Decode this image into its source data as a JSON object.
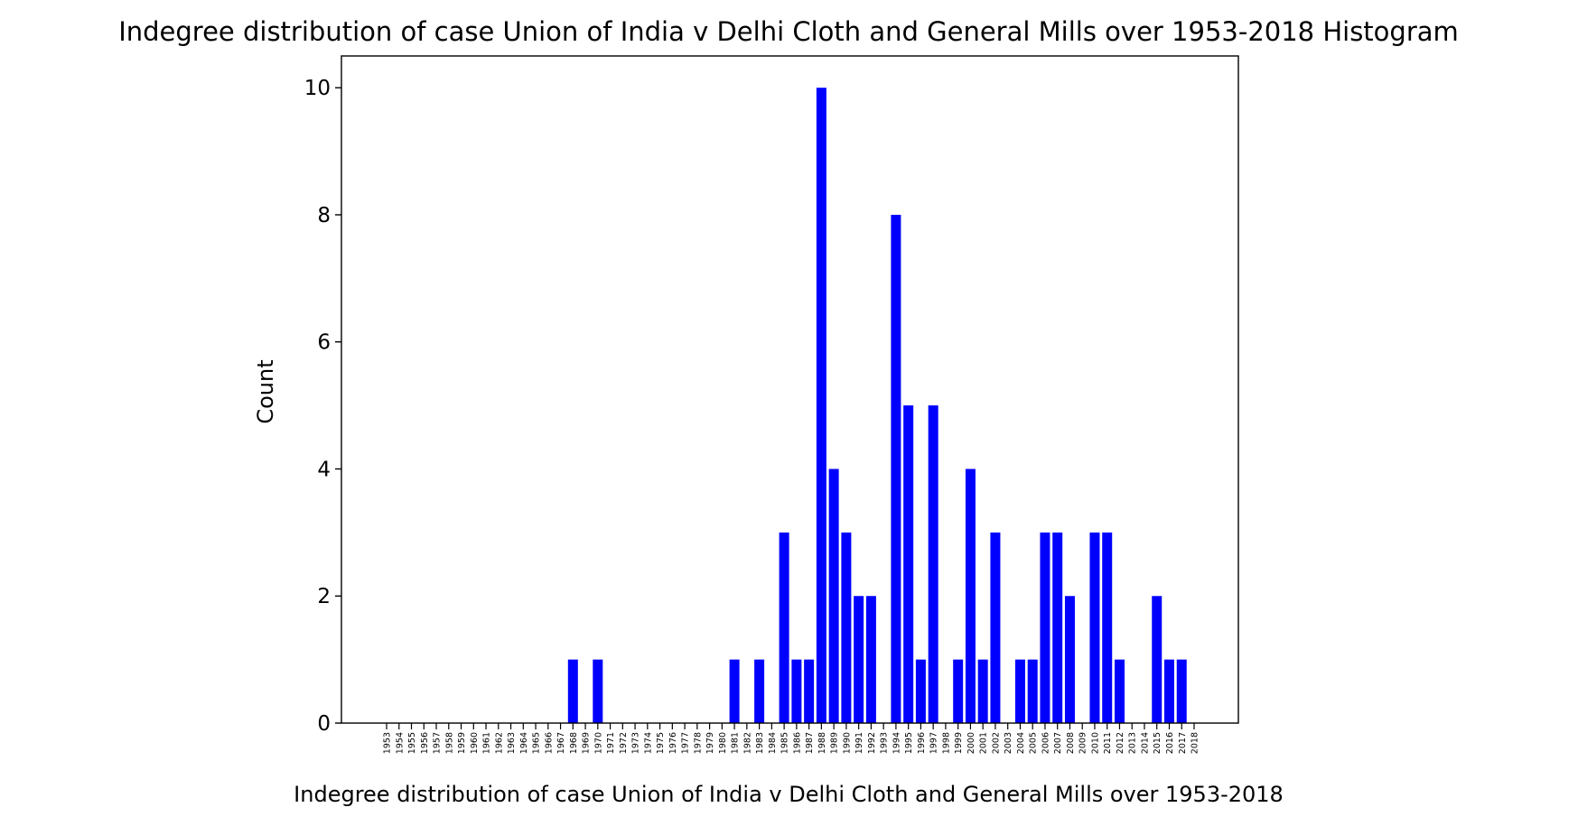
{
  "chart_data": {
    "type": "bar",
    "title": "Indegree distribution of case Union of India v Delhi Cloth and General Mills over 1953-2018 Histogram",
    "xlabel": "Indegree distribution of case Union of India v Delhi Cloth and General Mills over 1953-2018",
    "ylabel": "Count",
    "ylim": [
      0,
      10.5
    ],
    "yticks": [
      0,
      2,
      4,
      6,
      8,
      10
    ],
    "grid": false,
    "bar_color": "#0000ff",
    "categories": [
      "1953",
      "1954",
      "1955",
      "1956",
      "1957",
      "1958",
      "1959",
      "1960",
      "1961",
      "1962",
      "1963",
      "1964",
      "1965",
      "1966",
      "1967",
      "1968",
      "1969",
      "1970",
      "1971",
      "1972",
      "1973",
      "1974",
      "1975",
      "1976",
      "1977",
      "1978",
      "1979",
      "1980",
      "1981",
      "1982",
      "1983",
      "1984",
      "1985",
      "1986",
      "1987",
      "1988",
      "1989",
      "1990",
      "1991",
      "1992",
      "1993",
      "1994",
      "1995",
      "1996",
      "1997",
      "1998",
      "1999",
      "2000",
      "2001",
      "2002",
      "2003",
      "2004",
      "2005",
      "2006",
      "2007",
      "2008",
      "2009",
      "2010",
      "2011",
      "2012",
      "2013",
      "2014",
      "2015",
      "2016",
      "2017",
      "2018"
    ],
    "values": [
      0,
      0,
      0,
      0,
      0,
      0,
      0,
      0,
      0,
      0,
      0,
      0,
      0,
      0,
      0,
      1,
      0,
      1,
      0,
      0,
      0,
      0,
      0,
      0,
      0,
      0,
      0,
      0,
      1,
      0,
      1,
      0,
      3,
      1,
      1,
      10,
      4,
      3,
      2,
      2,
      0,
      8,
      5,
      1,
      5,
      0,
      1,
      4,
      1,
      3,
      0,
      1,
      1,
      3,
      3,
      2,
      0,
      3,
      3,
      1,
      0,
      0,
      2,
      1,
      1,
      0
    ]
  }
}
